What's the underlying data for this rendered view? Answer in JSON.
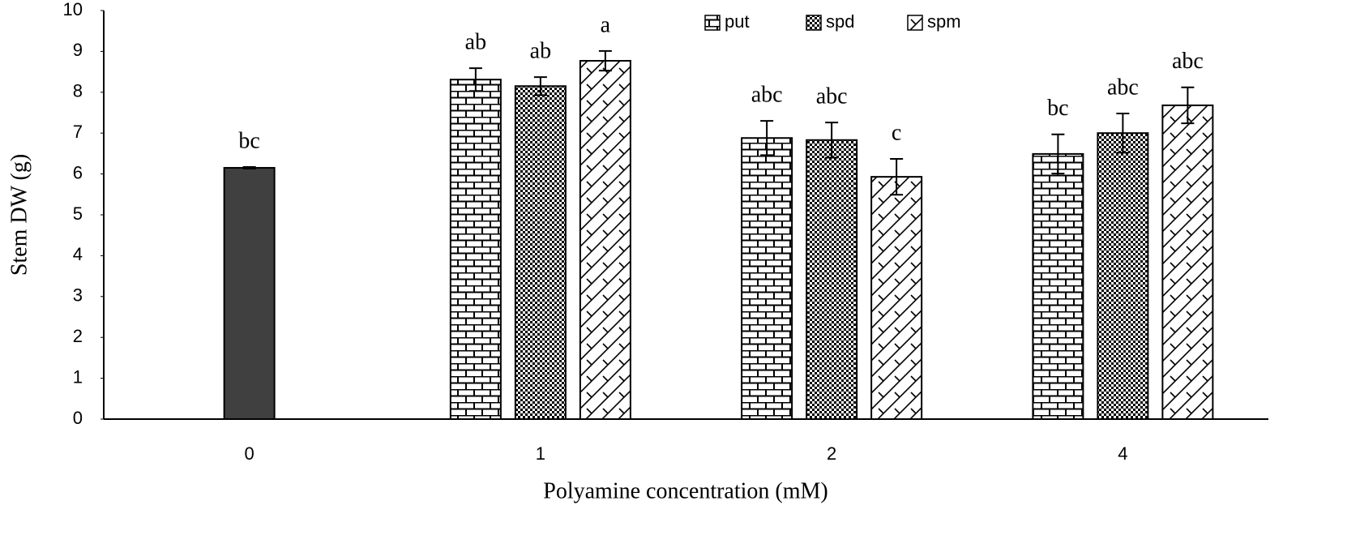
{
  "chart_data": {
    "type": "bar",
    "x_label": "Polyamine concentration (mM)",
    "y_label": "Stem DW (g)",
    "categories": [
      "0",
      "1",
      "2",
      "4"
    ],
    "control": {
      "color": "#404040",
      "values": [
        6.15
      ],
      "errors": [
        0.02
      ],
      "letters": [
        "bc"
      ]
    },
    "series": [
      {
        "name": "put",
        "pattern": "brick",
        "values": [
          null,
          8.31,
          6.88,
          6.49
        ],
        "errors": [
          null,
          0.28,
          0.42,
          0.48
        ],
        "letters": [
          null,
          "ab",
          "abc",
          "bc"
        ]
      },
      {
        "name": "spd",
        "pattern": "dots",
        "values": [
          null,
          8.15,
          6.83,
          7.0
        ],
        "errors": [
          null,
          0.22,
          0.43,
          0.48
        ],
        "letters": [
          null,
          "ab",
          "abc",
          "abc"
        ]
      },
      {
        "name": "spm",
        "pattern": "zigzag",
        "values": [
          null,
          8.77,
          5.93,
          7.68
        ],
        "errors": [
          null,
          0.24,
          0.44,
          0.44
        ],
        "letters": [
          null,
          "a",
          "c",
          "abc"
        ]
      }
    ],
    "ylim": [
      0,
      10
    ],
    "yticks": [
      0,
      1,
      2,
      3,
      4,
      5,
      6,
      7,
      8,
      9,
      10
    ],
    "legend": "top",
    "grid": false
  }
}
